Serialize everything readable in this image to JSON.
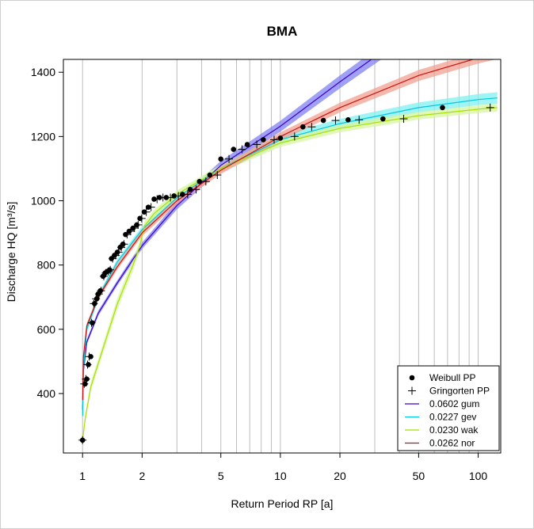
{
  "chart_data": {
    "type": "scatter",
    "title": "BMA",
    "xlabel": "Return Period RP  [a]",
    "ylabel": "Discharge HQ  [m³/s]",
    "x_scale": "log",
    "xlim": [
      0.8,
      130
    ],
    "ylim": [
      215,
      1440
    ],
    "x_ticks": [
      "1",
      "2",
      "5",
      "10",
      "20",
      "50",
      "100"
    ],
    "y_ticks": [
      "400",
      "600",
      "800",
      "1000",
      "1200",
      "1400"
    ],
    "x_gridlines": [
      1,
      2,
      3,
      4,
      5,
      6,
      7,
      8,
      9,
      10,
      20,
      30,
      40,
      50,
      60,
      70,
      80,
      90,
      100
    ],
    "legend_position": "bottom-right",
    "legend": [
      {
        "label": "Weibull PP",
        "symbol": "dot",
        "color": "#000000"
      },
      {
        "label": "Gringorten PP",
        "symbol": "plus",
        "color": "#000000"
      },
      {
        "label": "0.0602 gum",
        "symbol": "line",
        "color": "#3d00c8"
      },
      {
        "label": "0.0227 gev",
        "symbol": "line",
        "color": "#00c8e0"
      },
      {
        "label": "0.0230 wak",
        "symbol": "line",
        "color": "#a8e000"
      },
      {
        "label": "0.0262 nor",
        "symbol": "line",
        "color": "#cc1010"
      }
    ],
    "weibull_pp": {
      "rp": [
        1.0,
        1.03,
        1.05,
        1.07,
        1.1,
        1.12,
        1.15,
        1.18,
        1.2,
        1.23,
        1.27,
        1.3,
        1.33,
        1.37,
        1.4,
        1.45,
        1.5,
        1.55,
        1.6,
        1.65,
        1.72,
        1.8,
        1.88,
        1.95,
        2.05,
        2.15,
        2.3,
        2.45,
        2.65,
        2.9,
        3.2,
        3.5,
        3.9,
        4.4,
        5.0,
        5.8,
        6.8,
        8.2,
        10.0,
        13.0,
        16.5,
        22.0,
        33.0,
        66.0
      ],
      "hq": [
        255,
        430,
        445,
        490,
        515,
        620,
        680,
        695,
        710,
        720,
        765,
        775,
        780,
        785,
        820,
        830,
        840,
        855,
        865,
        895,
        905,
        915,
        925,
        945,
        965,
        980,
        1005,
        1010,
        1010,
        1015,
        1020,
        1035,
        1060,
        1080,
        1130,
        1160,
        1175,
        1190,
        1195,
        1230,
        1250,
        1252,
        1255,
        1290
      ]
    },
    "gringorten_pp": {
      "rp": [
        1.0,
        1.02,
        1.04,
        1.06,
        1.08,
        1.11,
        1.14,
        1.17,
        1.21,
        1.24,
        1.28,
        1.31,
        1.35,
        1.38,
        1.42,
        1.47,
        1.52,
        1.57,
        1.62,
        1.68,
        1.75,
        1.83,
        1.91,
        1.99,
        2.1,
        2.22,
        2.38,
        2.55,
        2.78,
        3.05,
        3.4,
        3.75,
        4.2,
        4.8,
        5.5,
        6.4,
        7.6,
        9.3,
        11.8,
        14.4,
        19.0,
        25.0,
        42.0,
        115.0
      ],
      "hq": [
        255,
        430,
        445,
        490,
        515,
        620,
        680,
        695,
        710,
        720,
        765,
        775,
        780,
        785,
        820,
        830,
        840,
        855,
        865,
        895,
        905,
        915,
        925,
        945,
        965,
        980,
        1005,
        1010,
        1010,
        1015,
        1020,
        1035,
        1060,
        1080,
        1130,
        1160,
        1175,
        1190,
        1200,
        1230,
        1250,
        1252,
        1255,
        1290
      ]
    },
    "series": [
      {
        "name": "0.0602 gum",
        "color": "#3d00c8",
        "band_color": "#8080f0",
        "rp": [
          1.001,
          1.01,
          1.05,
          1.2,
          1.5,
          2,
          3,
          5,
          10,
          20,
          50,
          100
        ],
        "hq": [
          350,
          470,
          560,
          650,
          745,
          860,
          985,
          1110,
          1232,
          1370,
          1545,
          1680
        ],
        "band_half": [
          12,
          10,
          8,
          8,
          8,
          10,
          12,
          14,
          17,
          20,
          24,
          27
        ]
      },
      {
        "name": "0.0227 gev",
        "color": "#00c8e0",
        "band_color": "#80f0f0",
        "rp": [
          1.001,
          1.01,
          1.05,
          1.2,
          1.5,
          2,
          3,
          5,
          10,
          20,
          50,
          100,
          125
        ],
        "hq": [
          330,
          475,
          600,
          700,
          810,
          910,
          1010,
          1100,
          1190,
          1240,
          1290,
          1315,
          1320
        ],
        "band_half": [
          18,
          14,
          12,
          10,
          9,
          10,
          12,
          13,
          14,
          15,
          16,
          17,
          18
        ]
      },
      {
        "name": "0.0230 wak",
        "color": "#a8e000",
        "band_color": "#d8f5a0",
        "rp": [
          1.001,
          1.03,
          1.1,
          1.3,
          1.5,
          1.8,
          1.95,
          2.05,
          2.3,
          3,
          5,
          10,
          20,
          50,
          100,
          125
        ],
        "hq": [
          255,
          320,
          420,
          560,
          680,
          800,
          860,
          920,
          960,
          1020,
          1100,
          1180,
          1225,
          1265,
          1285,
          1290
        ],
        "band_half": [
          10,
          12,
          14,
          16,
          18,
          18,
          16,
          14,
          12,
          12,
          12,
          12,
          12,
          12,
          12,
          12
        ]
      },
      {
        "name": "0.0262 nor",
        "color": "#cc1010",
        "band_color": "#f0a090",
        "rp": [
          1.001,
          1.01,
          1.05,
          1.2,
          1.5,
          2,
          3,
          5,
          10,
          20,
          50,
          100,
          125
        ],
        "hq": [
          380,
          515,
          610,
          700,
          795,
          900,
          1000,
          1095,
          1200,
          1290,
          1390,
          1445,
          1460
        ],
        "band_half": [
          12,
          10,
          9,
          9,
          9,
          10,
          11,
          12,
          13,
          15,
          17,
          18,
          19
        ]
      }
    ]
  }
}
